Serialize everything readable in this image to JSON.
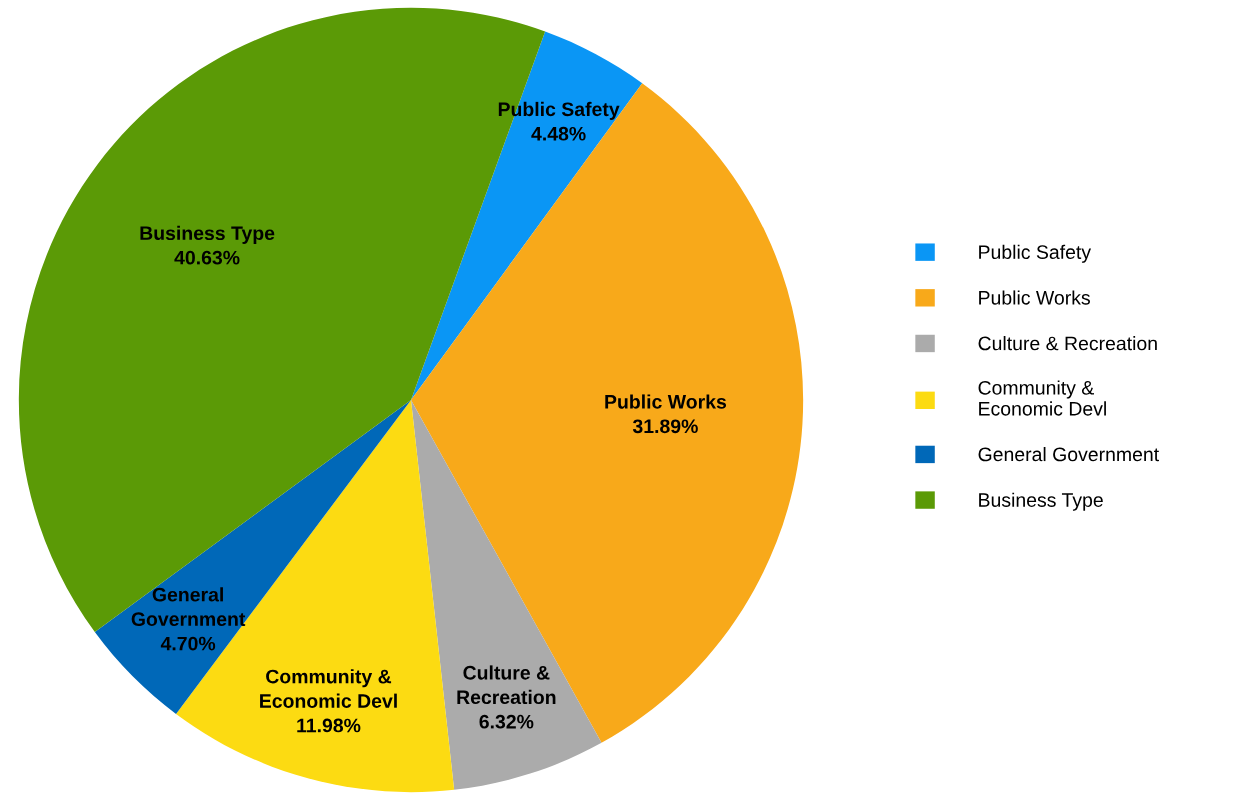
{
  "chart_data": {
    "type": "pie",
    "categories": [
      "Public Safety",
      "Public Works",
      "Culture & Recreation",
      "Community & Economic Devl",
      "General Government",
      "Business Type"
    ],
    "values": [
      4.48,
      31.89,
      6.32,
      11.98,
      4.7,
      40.63
    ],
    "value_labels": [
      "4.48%",
      "31.89%",
      "6.32%",
      "11.98%",
      "4.70%",
      "40.63%"
    ],
    "colors": [
      "#0a96f5",
      "#f8a91a",
      "#ababab",
      "#fcdb12",
      "#0068b8",
      "#5b9a06"
    ],
    "legend": "right"
  }
}
